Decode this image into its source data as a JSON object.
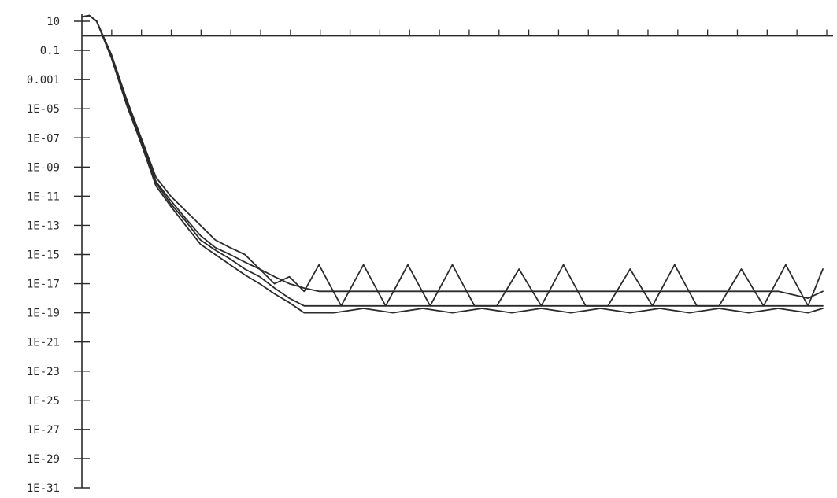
{
  "chart_data": {
    "type": "line",
    "title": "",
    "xlabel": "",
    "ylabel": "",
    "yscale": "log",
    "ylim": [
      1e-31,
      30
    ],
    "xlim": [
      0,
      100
    ],
    "grid": false,
    "legend": "none",
    "x_axis_position": "y = 1",
    "y_tick_labels": [
      "10",
      "0.1",
      "0.001",
      "1E-05",
      "1E-07",
      "1E-09",
      "1E-11",
      "1E-13",
      "1E-15",
      "1E-17",
      "1E-19",
      "1E-21",
      "1E-23",
      "1E-25",
      "1E-27",
      "1E-29",
      "1E-31"
    ],
    "y_tick_values": [
      10,
      0.1,
      0.001,
      1e-05,
      1e-07,
      1e-09,
      1e-11,
      1e-13,
      1e-15,
      1e-17,
      1e-19,
      1e-21,
      1e-23,
      1e-25,
      1e-27,
      1e-29,
      1e-31
    ],
    "x_tick_count": 25,
    "line_color": "#2b2b2b",
    "series": [
      {
        "x": [
          0,
          1,
          2,
          4,
          6,
          8,
          10,
          12,
          14,
          16,
          18,
          20,
          22,
          24,
          26,
          28,
          30,
          32,
          35,
          38,
          41,
          44,
          47,
          50,
          53,
          56,
          59,
          62,
          65,
          68,
          71,
          74,
          77,
          80,
          83,
          86,
          89,
          92,
          95,
          98,
          100
        ],
        "y": [
          20,
          25,
          10,
          0.05,
          5e-05,
          1e-07,
          2e-10,
          1e-11,
          1e-12,
          1e-13,
          1e-14,
          3e-15,
          1e-15,
          1e-16,
          1e-17,
          3e-17,
          3e-18,
          2e-16,
          3e-19,
          2e-16,
          3e-19,
          2e-16,
          3e-19,
          2e-16,
          3e-19,
          3e-19,
          1e-16,
          3e-19,
          2e-16,
          3e-19,
          3e-19,
          1e-16,
          3e-19,
          2e-16,
          3e-19,
          3e-19,
          1e-16,
          3e-19,
          2e-16,
          3e-19,
          1e-16
        ]
      },
      {
        "x": [
          0,
          1,
          2,
          4,
          6,
          8,
          10,
          12,
          14,
          16,
          18,
          20,
          22,
          24,
          26,
          28,
          30,
          32,
          34,
          36,
          38,
          42,
          46,
          50,
          54,
          58,
          62,
          66,
          70,
          74,
          78,
          82,
          86,
          90,
          94,
          98,
          100
        ],
        "y": [
          20,
          25,
          10,
          0.04,
          4e-05,
          8e-08,
          1e-10,
          5e-12,
          3e-13,
          2e-14,
          3e-15,
          1e-15,
          3e-16,
          1e-16,
          3e-17,
          1e-17,
          5e-18,
          3e-18,
          3e-18,
          3e-18,
          3e-18,
          3e-18,
          3e-18,
          3e-18,
          3e-18,
          3e-18,
          3e-18,
          3e-18,
          3e-18,
          3e-18,
          3e-18,
          3e-18,
          3e-18,
          3e-18,
          3e-18,
          1e-18,
          3e-18
        ]
      },
      {
        "x": [
          0,
          1,
          2,
          4,
          6,
          8,
          10,
          12,
          14,
          16,
          18,
          20,
          22,
          24,
          26,
          28,
          30,
          34,
          38,
          42,
          46,
          50,
          54,
          58,
          62,
          66,
          70,
          74,
          78,
          82,
          86,
          90,
          94,
          98,
          100
        ],
        "y": [
          20,
          25,
          10,
          0.03,
          3e-05,
          5e-08,
          8e-11,
          3e-12,
          2e-13,
          1e-14,
          2e-15,
          5e-16,
          1e-16,
          3e-17,
          5e-18,
          1e-18,
          3e-19,
          3e-19,
          3e-19,
          3e-19,
          3e-19,
          3e-19,
          3e-19,
          3e-19,
          3e-19,
          3e-19,
          3e-19,
          3e-19,
          3e-19,
          3e-19,
          3e-19,
          3e-19,
          3e-19,
          3e-19,
          3e-19
        ]
      },
      {
        "x": [
          0,
          1,
          2,
          4,
          6,
          8,
          10,
          12,
          14,
          16,
          18,
          20,
          22,
          24,
          26,
          28,
          30,
          34,
          38,
          42,
          46,
          50,
          54,
          58,
          62,
          66,
          70,
          74,
          78,
          82,
          86,
          90,
          94,
          98,
          100
        ],
        "y": [
          20,
          25,
          10,
          0.03,
          2e-05,
          4e-08,
          5e-11,
          2e-12,
          1e-13,
          5e-15,
          1e-15,
          2e-16,
          4e-17,
          1e-17,
          2e-18,
          5e-19,
          1e-19,
          1e-19,
          2e-19,
          1e-19,
          2e-19,
          1e-19,
          2e-19,
          1e-19,
          2e-19,
          1e-19,
          2e-19,
          1e-19,
          2e-19,
          1e-19,
          2e-19,
          1e-19,
          2e-19,
          1e-19,
          2e-19
        ]
      }
    ]
  }
}
